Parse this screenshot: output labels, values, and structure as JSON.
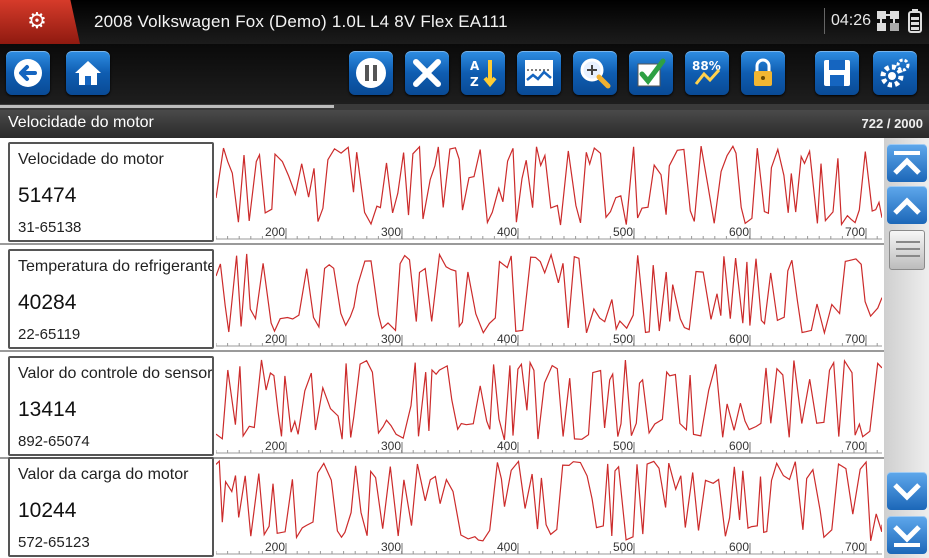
{
  "titlebar": {
    "vehicle": "2008 Volkswagen  Fox (Demo) 1.0L L4 8V Flex EA111",
    "clock": "04:26",
    "status_icons": [
      "network-icon",
      "battery-icon"
    ]
  },
  "toolbar": {
    "buttons": [
      {
        "name": "back-button",
        "icon": "back-arrow-icon"
      },
      {
        "name": "home-button",
        "icon": "home-icon"
      },
      {
        "name": "pause-button",
        "icon": "pause-icon"
      },
      {
        "name": "clear-button",
        "icon": "x-icon"
      },
      {
        "name": "sort-button",
        "icon": "sort-az-icon"
      },
      {
        "name": "graph-view-button",
        "icon": "graph-icon"
      },
      {
        "name": "zoom-button",
        "icon": "zoom-icon"
      },
      {
        "name": "select-button",
        "icon": "checkmark-icon"
      },
      {
        "name": "units-button",
        "icon": "percent-icon"
      },
      {
        "name": "lock-button",
        "icon": "lock-icon"
      },
      {
        "name": "save-button",
        "icon": "floppy-icon"
      },
      {
        "name": "settings-button",
        "icon": "gear-icon"
      }
    ],
    "units_label": "88%"
  },
  "progress": {
    "fraction": 0.36
  },
  "header": {
    "title": "Velocidade do motor",
    "count": "722 / 2000"
  },
  "graph_axis": {
    "ticks": [
      "200",
      "300",
      "400",
      "500",
      "600",
      "700"
    ]
  },
  "pids": [
    {
      "name": "Velocidade do motor",
      "value": "51474",
      "range": "31-65138"
    },
    {
      "name": "Temperatura do refrigerante",
      "value": "40284",
      "range": "22-65119"
    },
    {
      "name": "Valor do controle do sensor",
      "value": "13414",
      "range": "892-65074"
    },
    {
      "name": "Valor da carga do motor",
      "value": "10244",
      "range": "572-65123"
    }
  ],
  "colors": {
    "trace": "#cc2b2b",
    "toolbar_button": "#1470c7",
    "logo": "#c9301f"
  }
}
